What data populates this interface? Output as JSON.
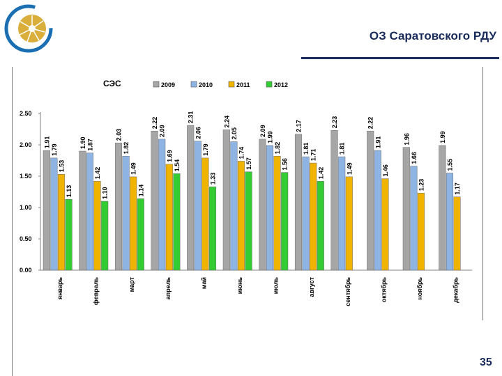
{
  "header": {
    "title": "ОЗ Саратовского РДУ",
    "page_number": "35"
  },
  "colors": {
    "series": [
      "#a6a6a6",
      "#8eb4e3",
      "#f0b400",
      "#33cc33"
    ],
    "brand": "#1a2c5c"
  },
  "chart_data": {
    "type": "bar",
    "title": "СЭС",
    "categories": [
      "январь",
      "февраль",
      "март",
      "апрель",
      "май",
      "июнь",
      "июль",
      "август",
      "сентябрь",
      "октябрь",
      "ноябрь",
      "декабрь"
    ],
    "series": [
      {
        "name": "2009",
        "values": [
          1.91,
          1.9,
          2.03,
          2.22,
          2.31,
          2.24,
          2.09,
          2.17,
          2.23,
          2.22,
          1.96,
          1.99
        ]
      },
      {
        "name": "2010",
        "values": [
          1.79,
          1.87,
          1.82,
          2.09,
          2.06,
          2.05,
          1.99,
          1.81,
          1.81,
          1.91,
          1.66,
          1.55
        ]
      },
      {
        "name": "2011",
        "values": [
          1.53,
          1.42,
          1.49,
          1.69,
          1.79,
          1.74,
          1.82,
          1.71,
          1.49,
          1.46,
          1.23,
          1.17
        ]
      },
      {
        "name": "2012",
        "values": [
          1.13,
          1.1,
          1.14,
          1.54,
          1.33,
          1.57,
          1.56,
          1.42,
          null,
          null,
          null,
          null
        ]
      }
    ],
    "yticks": [
      "0.00",
      "0.50",
      "1.00",
      "1.50",
      "2.00",
      "2.50"
    ],
    "ylim": [
      0,
      2.5
    ],
    "legend_position": "top"
  }
}
